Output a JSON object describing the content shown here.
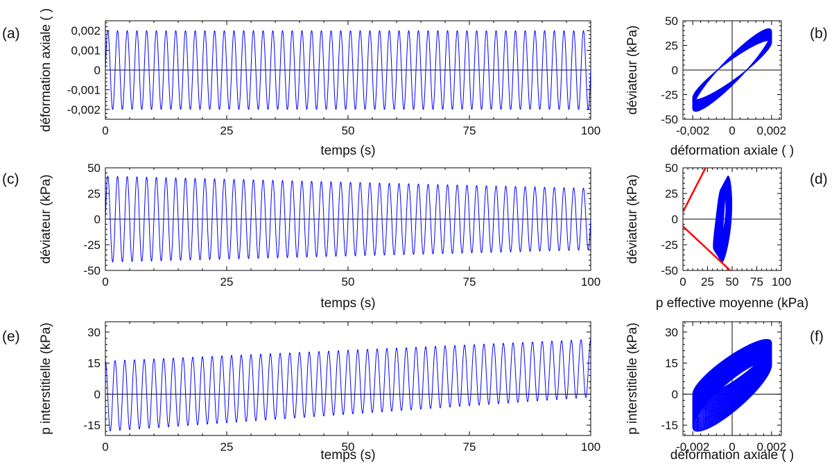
{
  "chart_data": [
    {
      "id": "a",
      "panel_label": "(a)",
      "type": "line",
      "xlabel": "temps (s)",
      "ylabel": "déformation axiale ( )",
      "xlim": [
        0,
        100
      ],
      "ylim": [
        -0.0025,
        0.0025
      ],
      "xticks": [
        0,
        25,
        50,
        75,
        100
      ],
      "yticks": [
        -0.002,
        -0.001,
        0,
        0.001,
        0.002
      ],
      "xtick_labels": [
        "0",
        "25",
        "50",
        "75",
        "100"
      ],
      "ytick_labels": [
        "-0,002",
        "-0,001",
        "0",
        "0,001",
        "0,002"
      ],
      "zero_line": "horizontal",
      "color": "#0000ff",
      "series": [
        {
          "signal": "sine",
          "period_s": 2,
          "amplitude_start": 0.002,
          "amplitude_end": 0.002,
          "offset_start": 0,
          "offset_end": 0,
          "t_start": 0,
          "t_end": 100
        }
      ]
    },
    {
      "id": "b",
      "panel_label": "(b)",
      "type": "line",
      "xlabel": "déformation axiale ( )",
      "ylabel": "déviateur (kPa)",
      "xlim": [
        -0.0025,
        0.0025
      ],
      "ylim": [
        -50,
        50
      ],
      "xticks": [
        -0.002,
        0,
        0.002
      ],
      "yticks": [
        -50,
        -25,
        0,
        25,
        50
      ],
      "xtick_labels": [
        "-0,002",
        "0",
        "0,002"
      ],
      "ytick_labels": [
        "-50",
        "-25",
        "0",
        "25",
        "50"
      ],
      "zero_line": "both",
      "color": "#0000ff",
      "loops": {
        "x_amplitude": 0.002,
        "y_amplitude_start": 42,
        "y_amplitude_end": 30,
        "phase_lag_rad": 0.38,
        "cycles": 50
      }
    },
    {
      "id": "c",
      "panel_label": "(c)",
      "type": "line",
      "xlabel": "temps (s)",
      "ylabel": "déviateur (kPa)",
      "xlim": [
        0,
        100
      ],
      "ylim": [
        -50,
        50
      ],
      "xticks": [
        0,
        25,
        50,
        75,
        100
      ],
      "yticks": [
        -50,
        -25,
        0,
        25,
        50
      ],
      "xtick_labels": [
        "0",
        "25",
        "50",
        "75",
        "100"
      ],
      "ytick_labels": [
        "-50",
        "-25",
        "0",
        "25",
        "50"
      ],
      "zero_line": "horizontal",
      "color": "#0000ff",
      "series": [
        {
          "signal": "sine",
          "period_s": 2,
          "amplitude_start": 42,
          "amplitude_end": 30,
          "offset_start": 0,
          "offset_end": 0,
          "t_start": 0,
          "t_end": 100
        }
      ]
    },
    {
      "id": "d",
      "panel_label": "(d)",
      "type": "line",
      "xlabel": "p effective moyenne (kPa)",
      "ylabel": "déviateur (kPa)",
      "xlim": [
        0,
        100
      ],
      "ylim": [
        -50,
        50
      ],
      "xticks": [
        0,
        25,
        50,
        75,
        100
      ],
      "yticks": [
        -50,
        -25,
        0,
        25,
        50
      ],
      "xtick_labels": [
        "0",
        "25",
        "50",
        "75",
        "100"
      ],
      "ytick_labels": [
        "-50",
        "-25",
        "0",
        "25",
        "50"
      ],
      "zero_line": "horizontal",
      "color": "#0000ff",
      "stress_path": {
        "p_mean_start": 44,
        "p_mean_end": 37,
        "p_swing_start": 5,
        "p_swing_end": 6,
        "q_amplitude_start": 42,
        "q_amplitude_end": 30,
        "cycles": 50
      },
      "failure_lines": [
        {
          "color": "#ff0000",
          "points": [
            [
              0,
              7
            ],
            [
              23,
              50
            ]
          ]
        },
        {
          "color": "#ff0000",
          "points": [
            [
              0,
              -7
            ],
            [
              48,
              -50
            ]
          ]
        }
      ]
    },
    {
      "id": "e",
      "panel_label": "(e)",
      "type": "line",
      "xlabel": "temps (s)",
      "ylabel": "p interstitielle (kPa)",
      "xlim": [
        0,
        100
      ],
      "ylim": [
        -20,
        35
      ],
      "xticks": [
        0,
        25,
        50,
        75,
        100
      ],
      "yticks": [
        -15,
        0,
        15,
        30
      ],
      "xtick_labels": [
        "0",
        "25",
        "50",
        "75",
        "100"
      ],
      "ytick_labels": [
        "-15",
        "0",
        "15",
        "30"
      ],
      "zero_line": "horizontal",
      "color": "#0000ff",
      "series": [
        {
          "signal": "cosine",
          "period_s": 2,
          "amplitude_start": 17,
          "amplitude_end": 14,
          "offset_start": -1,
          "offset_end": 12.5,
          "t_start": 0,
          "t_end": 100
        }
      ]
    },
    {
      "id": "f",
      "panel_label": "(f)",
      "type": "line",
      "xlabel": "déformation axiale ( )",
      "ylabel": "p interstitielle (kPa)",
      "xlim": [
        -0.0025,
        0.0025
      ],
      "ylim": [
        -20,
        35
      ],
      "xticks": [
        -0.002,
        0,
        0.002
      ],
      "yticks": [
        -15,
        0,
        15,
        30
      ],
      "xtick_labels": [
        "-0,002",
        "0",
        "0,002"
      ],
      "ytick_labels": [
        "-15",
        "0",
        "15",
        "30"
      ],
      "zero_line": "both",
      "color": "#0000ff",
      "loops": {
        "x_amplitude": 0.002,
        "y_amplitude_start": 17,
        "y_amplitude_end": 14,
        "y_offset_start": -1,
        "y_offset_end": 12.5,
        "phase_lag_rad": 0.5,
        "cycles": 50
      }
    }
  ]
}
